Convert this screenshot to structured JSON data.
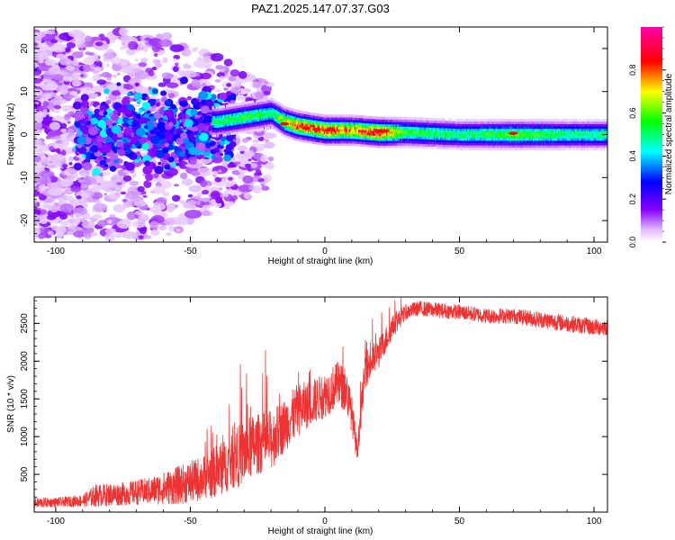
{
  "title": "PAZ1.2025.147.07.37.G03",
  "colors": {
    "snr_line": "#ee3333",
    "frame": "#000000"
  },
  "chart_data": [
    {
      "type": "heatmap",
      "name": "spectrogram",
      "xlabel": "Height of straight line (km)",
      "ylabel": "Frequency (Hz)",
      "xlim": [
        -108,
        105
      ],
      "ylim": [
        -25,
        25
      ],
      "xticks": [
        -100,
        -50,
        0,
        50,
        100
      ],
      "yticks": [
        -20,
        -10,
        0,
        10,
        20
      ],
      "colorbar": {
        "label": "Normalized spectral amplitude",
        "range": [
          0,
          1
        ],
        "ticks": [
          "0.0",
          "0.2",
          "0.4",
          "0.6",
          "0.8"
        ],
        "colormap": "rainbow (white-violet-blue-cyan-green-yellow-red-magenta)"
      },
      "ridge": {
        "description": "dominant frequency track",
        "x": [
          -40,
          -30,
          -20,
          -15,
          -10,
          0,
          10,
          20,
          30,
          50,
          70,
          90,
          105
        ],
        "freq": [
          3,
          4,
          5,
          3,
          2,
          1,
          1,
          0.5,
          0.5,
          0,
          0,
          0,
          0
        ],
        "amplitude": [
          0.5,
          0.55,
          0.5,
          0.7,
          0.8,
          0.85,
          0.75,
          0.9,
          0.55,
          0.5,
          0.6,
          0.5,
          0.5
        ]
      }
    },
    {
      "type": "line",
      "name": "snr",
      "xlabel": "Height of straight line (km)",
      "ylabel": "SNR (10 * v/v)",
      "xlim": [
        -108,
        105
      ],
      "ylim": [
        0,
        2850
      ],
      "xticks": [
        -100,
        -50,
        0,
        50,
        100
      ],
      "yticks": [
        500,
        1000,
        1500,
        2000,
        2500
      ],
      "envelope": {
        "x": [
          -108,
          -100,
          -90,
          -85,
          -75,
          -65,
          -55,
          -45,
          -40,
          -35,
          -30,
          -25,
          -20,
          -15,
          -10,
          -5,
          0,
          5,
          8,
          10,
          12,
          15,
          20,
          25,
          30,
          35,
          40,
          50,
          60,
          70,
          80,
          90,
          100,
          105
        ],
        "mean": [
          120,
          130,
          150,
          220,
          240,
          280,
          350,
          450,
          550,
          650,
          800,
          900,
          950,
          1150,
          1350,
          1450,
          1550,
          1700,
          1600,
          1300,
          800,
          1900,
          2100,
          2450,
          2650,
          2700,
          2680,
          2650,
          2600,
          2600,
          2550,
          2500,
          2450,
          2450
        ],
        "spread": [
          70,
          60,
          80,
          150,
          150,
          180,
          250,
          300,
          350,
          350,
          450,
          400,
          400,
          350,
          350,
          300,
          300,
          300,
          300,
          250,
          150,
          250,
          200,
          150,
          100,
          100,
          100,
          100,
          100,
          100,
          110,
          110,
          110,
          110
        ]
      }
    }
  ]
}
